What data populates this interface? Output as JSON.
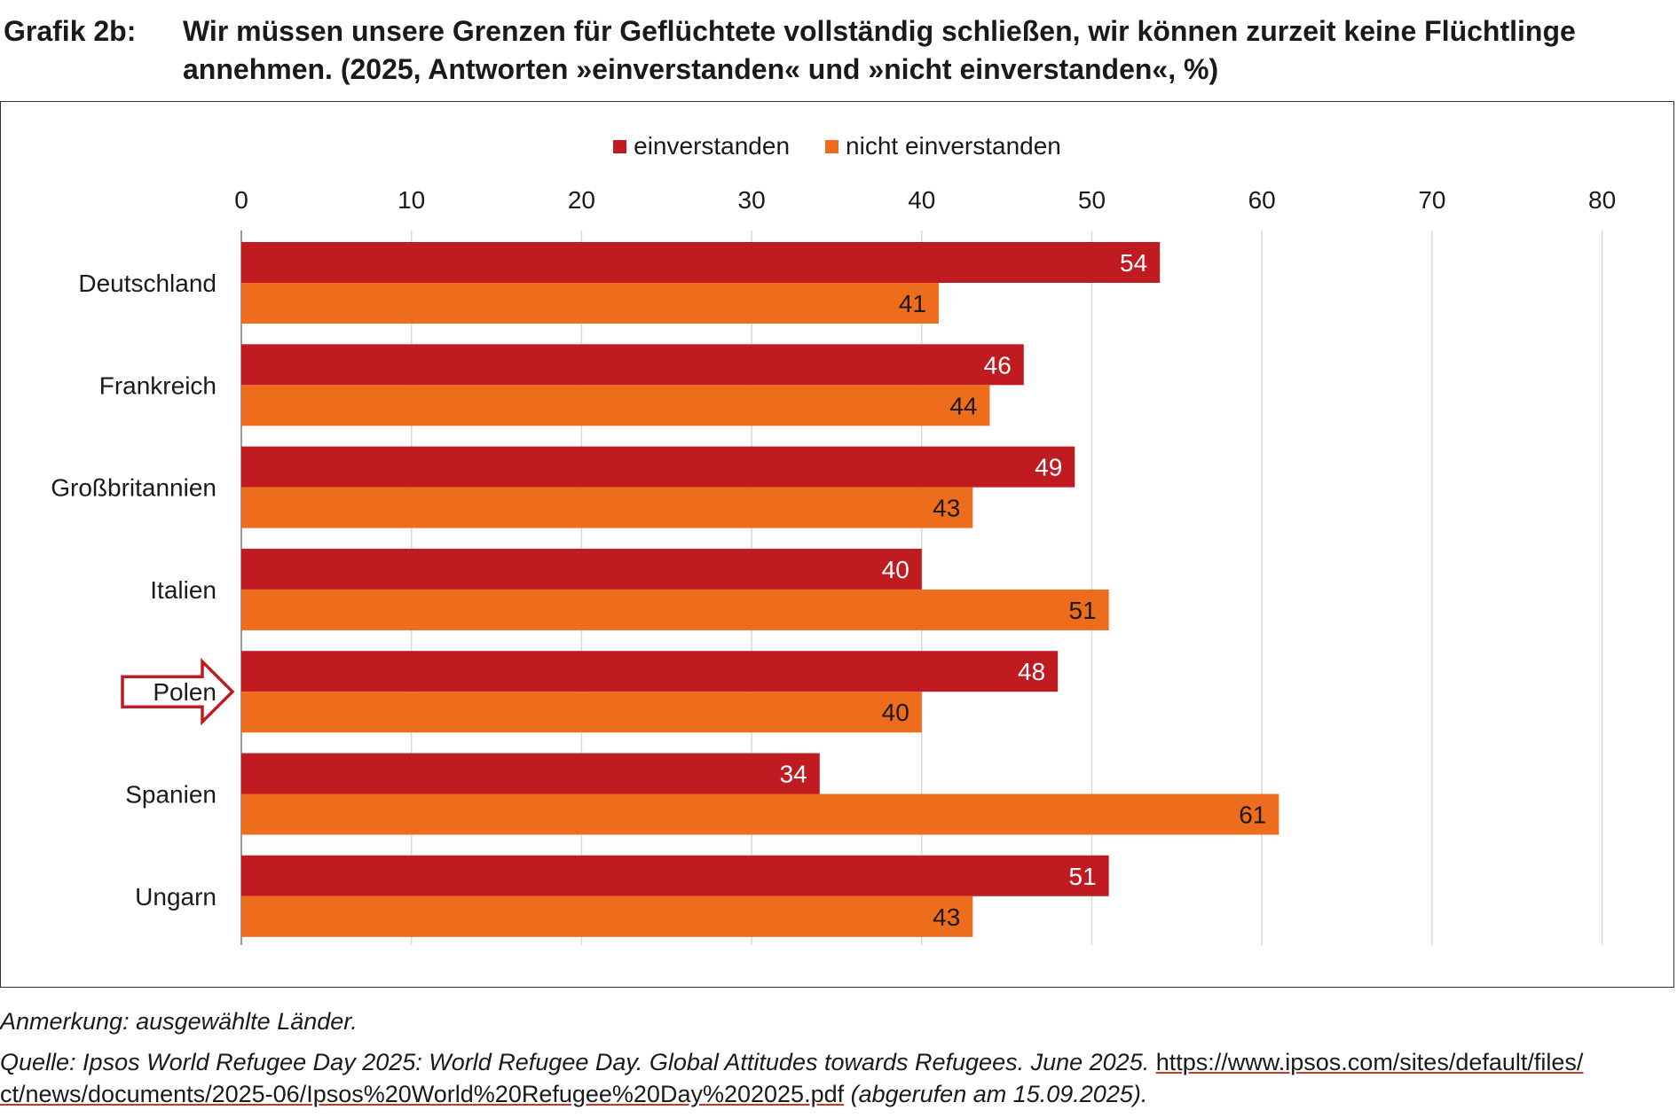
{
  "figure_label": "Grafik 2b:",
  "title": "Wir müssen unsere Grenzen für Geflüchtete vollständig schließen, wir können zurzeit keine Flüchtlinge annehmen. (2025, Antworten »einverstanden« und »nicht einverstanden«, %)",
  "colors": {
    "agree": "#bf1b21",
    "disagree": "#ed6d1c",
    "grid": "#d9d9d9",
    "axis": "#9a9a9a",
    "arrow": "#bf1b21"
  },
  "chart_data": {
    "type": "bar",
    "orientation": "horizontal",
    "categories": [
      "Deutschland",
      "Frankreich",
      "Großbritannien",
      "Italien",
      "Polen",
      "Spanien",
      "Ungarn"
    ],
    "series": [
      {
        "name": "einverstanden",
        "values": [
          54,
          46,
          49,
          40,
          48,
          34,
          51
        ]
      },
      {
        "name": "nicht einverstanden",
        "values": [
          41,
          44,
          43,
          51,
          40,
          61,
          43
        ]
      }
    ],
    "xlim": [
      0,
      80
    ],
    "xticks": [
      0,
      10,
      20,
      30,
      40,
      50,
      60,
      70,
      80
    ],
    "legend_position": "top",
    "grid": true,
    "highlighted_category": "Polen"
  },
  "notes": {
    "remark": "Anmerkung: ausgewählte Länder.",
    "source_prefix": "Quelle: Ipsos World Refugee Day 2025: World Refugee Day. Global Attitudes towards Refugees. June 2025. ",
    "source_url_part1": "https://www.ipsos.com/sites/default/files/",
    "source_url_part2": "ct/news/documents/2025-06/Ipsos%20World%20Refugee%20Day%202025.pdf",
    "source_suffix": " (abgerufen am 15.09.2025)."
  }
}
